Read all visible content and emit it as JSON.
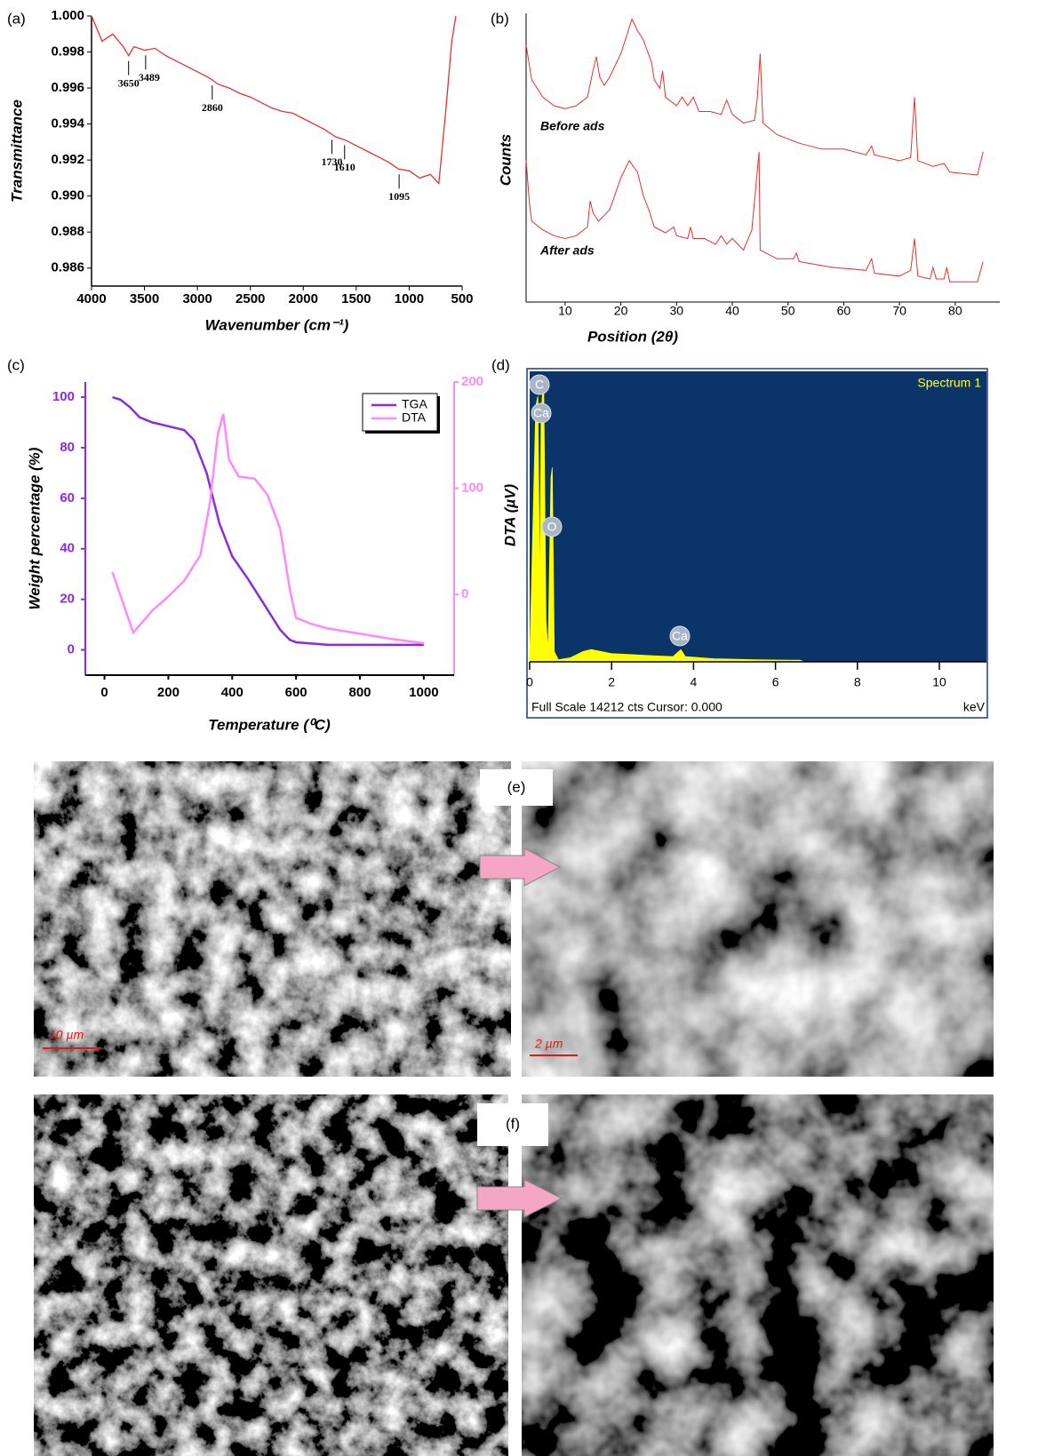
{
  "chart_data": [
    {
      "panel_label": "(a)",
      "type": "line",
      "ylabel": "Transmittance",
      "xlabel": "Wavenumber (cm⁻¹)",
      "x": [
        4000,
        3900,
        3800,
        3700,
        3650,
        3600,
        3500,
        3400,
        3300,
        3200,
        3100,
        3000,
        2900,
        2800,
        2700,
        2600,
        2500,
        2400,
        2300,
        2200,
        2100,
        2000,
        1900,
        1800,
        1700,
        1600,
        1500,
        1400,
        1300,
        1200,
        1100,
        1000,
        900,
        800,
        720,
        650,
        600,
        560
      ],
      "series": [
        {
          "color": "#e8302a",
          "values": [
            1.0,
            0.9986,
            0.999,
            0.9983,
            0.9978,
            0.9983,
            0.9981,
            0.9982,
            0.9978,
            0.9975,
            0.9972,
            0.9969,
            0.9966,
            0.9962,
            0.996,
            0.9957,
            0.9955,
            0.9952,
            0.9949,
            0.9947,
            0.9946,
            0.9943,
            0.994,
            0.9937,
            0.9933,
            0.9931,
            0.9928,
            0.9925,
            0.9922,
            0.9919,
            0.9915,
            0.9914,
            0.991,
            0.9912,
            0.9907,
            0.995,
            0.9985,
            1.0
          ]
        }
      ],
      "xlim": [
        4000,
        500
      ],
      "xticks": [
        4000,
        3500,
        3000,
        2500,
        2000,
        1500,
        1000,
        500
      ],
      "ylim": [
        0.985,
        1.0
      ],
      "yticks": [
        {
          "value": 1,
          "label": "1.000"
        },
        0.998,
        0.996,
        0.994,
        0.992,
        {
          "value": 0.99,
          "label": "0.990"
        },
        0.988,
        0.986
      ],
      "annotations": [
        3650,
        3489,
        2860,
        1730,
        1610,
        1095
      ]
    },
    {
      "panel_label": "(b)",
      "type": "line",
      "ylabel": "Counts",
      "xlabel": "Position (2θ)",
      "series": [
        {
          "name": "Before ads",
          "color": "#e8302a",
          "x": [
            3,
            4,
            6,
            8,
            10,
            12,
            14,
            15,
            15.6,
            16.2,
            17,
            18,
            19,
            20,
            21,
            22,
            23,
            24,
            25.5,
            26,
            27,
            27.5,
            28,
            30,
            31,
            32,
            33,
            34,
            36,
            38,
            39,
            40,
            42,
            44,
            44.5,
            45,
            45.5,
            48,
            52,
            56,
            60,
            64,
            65,
            65.5,
            70,
            72,
            72.7,
            73.3,
            76,
            78,
            79,
            84,
            85
          ],
          "values": [
            89,
            77,
            71,
            68,
            67,
            68,
            71,
            80,
            85,
            78,
            75,
            78,
            82,
            86,
            92,
            98,
            94,
            91,
            83,
            77,
            74,
            80,
            71,
            68,
            71,
            68,
            71,
            66,
            66,
            65,
            70,
            65,
            62,
            63,
            71,
            86,
            62,
            58,
            55,
            53,
            53,
            51,
            54,
            51,
            49,
            50,
            71,
            49,
            47,
            48,
            45,
            44,
            52
          ]
        },
        {
          "name": "After ads",
          "color": "#e8302a",
          "x": [
            3,
            3.6,
            4,
            6,
            8,
            10,
            12,
            14,
            14.5,
            15,
            16,
            18,
            20,
            21.5,
            23,
            24,
            25,
            26,
            28,
            29.5,
            30,
            32,
            32.5,
            33,
            35,
            37,
            38,
            39,
            40,
            42,
            43.5,
            44.8,
            45,
            48,
            51,
            51.5,
            52,
            58,
            64,
            65,
            65.5,
            70,
            72,
            72.7,
            73.3,
            75.5,
            76,
            76.6,
            78,
            78.5,
            79,
            84,
            85
          ],
          "values": [
            49,
            34,
            28,
            25,
            23,
            22,
            23,
            26,
            35,
            31,
            28,
            32,
            43,
            49,
            45,
            37,
            32,
            26,
            24,
            26,
            23,
            22,
            26,
            22,
            22,
            20,
            23,
            20,
            22,
            18,
            25,
            52,
            18,
            15,
            15,
            17,
            14,
            12,
            11,
            15,
            10,
            9,
            11,
            22,
            9,
            8,
            12,
            8,
            8,
            12,
            7,
            7,
            14
          ]
        }
      ],
      "xlim": [
        3,
        88
      ],
      "xticks": [
        10,
        20,
        30,
        40,
        50,
        60,
        70,
        80
      ],
      "ylim": [
        0,
        100
      ]
    },
    {
      "panel_label": "(c)",
      "type": "line",
      "xlabel": "Temperature (⁰C)",
      "ylabel": "Weight percentage (%)",
      "y2label": "DTA (µV)",
      "series": [
        {
          "name": "TGA",
          "color": "#8a2be2",
          "x": [
            25,
            50,
            80,
            110,
            150,
            200,
            250,
            280,
            320,
            360,
            400,
            450,
            500,
            550,
            580,
            600,
            700,
            800,
            1000
          ],
          "values": [
            100,
            99,
            96,
            92,
            90,
            88.5,
            87,
            83,
            70,
            50,
            37,
            28,
            18,
            8,
            4,
            3,
            2,
            2,
            2
          ]
        },
        {
          "name": "DTA",
          "color": "#ff88ff",
          "axis": "y2",
          "x": [
            25,
            90,
            150,
            200,
            250,
            300,
            330,
            355,
            372,
            390,
            420,
            470,
            510,
            550,
            580,
            600,
            650,
            700,
            800,
            900,
            1000
          ],
          "values": [
            21,
            -36,
            -15,
            -2,
            13,
            37,
            86,
            151,
            170,
            127,
            111,
            109,
            94,
            62,
            5,
            -22,
            -28,
            -32,
            -37,
            -42,
            -46
          ]
        }
      ],
      "xlim": [
        -60,
        1095
      ],
      "xticks": [
        0,
        200,
        400,
        600,
        800,
        1000
      ],
      "ylim": [
        -10,
        106
      ],
      "yticks": [
        0,
        20,
        40,
        60,
        80,
        100
      ],
      "y2lim": [
        -76,
        200
      ],
      "y2ticks": [
        0,
        100,
        200
      ],
      "legend": "upper right"
    },
    {
      "panel_label": "(d)",
      "type": "area",
      "title": "Spectrum 1",
      "footer": "Full Scale 14212 cts Cursor: 0.000",
      "xlabel": "keV",
      "x": [
        0,
        0.15,
        0.2,
        0.25,
        0.28,
        0.34,
        0.4,
        0.45,
        0.52,
        0.55,
        0.6,
        0.7,
        1.0,
        1.3,
        1.5,
        2.0,
        2.5,
        3.0,
        3.5,
        3.69,
        3.8,
        4.5,
        5.5,
        6.6,
        6.7,
        11.1
      ],
      "values": [
        0,
        12500,
        13000,
        3000,
        12000,
        14000,
        2000,
        500,
        9000,
        9500,
        500,
        100,
        200,
        500,
        600,
        400,
        350,
        300,
        250,
        600,
        250,
        150,
        100,
        80,
        0,
        0
      ],
      "color": "#ffff00",
      "background": "#0b3468",
      "xlim": [
        0,
        11.15
      ],
      "xticks": [
        0,
        2,
        4,
        6,
        8,
        10
      ],
      "ylim": [
        0,
        14212
      ],
      "peak_labels": [
        "C",
        "Ca",
        "O",
        "Ca"
      ]
    }
  ],
  "images": [
    {
      "label": "(e)",
      "scale_bars": [
        "10 µm",
        "2 µm"
      ]
    },
    {
      "label": "(f)"
    }
  ]
}
